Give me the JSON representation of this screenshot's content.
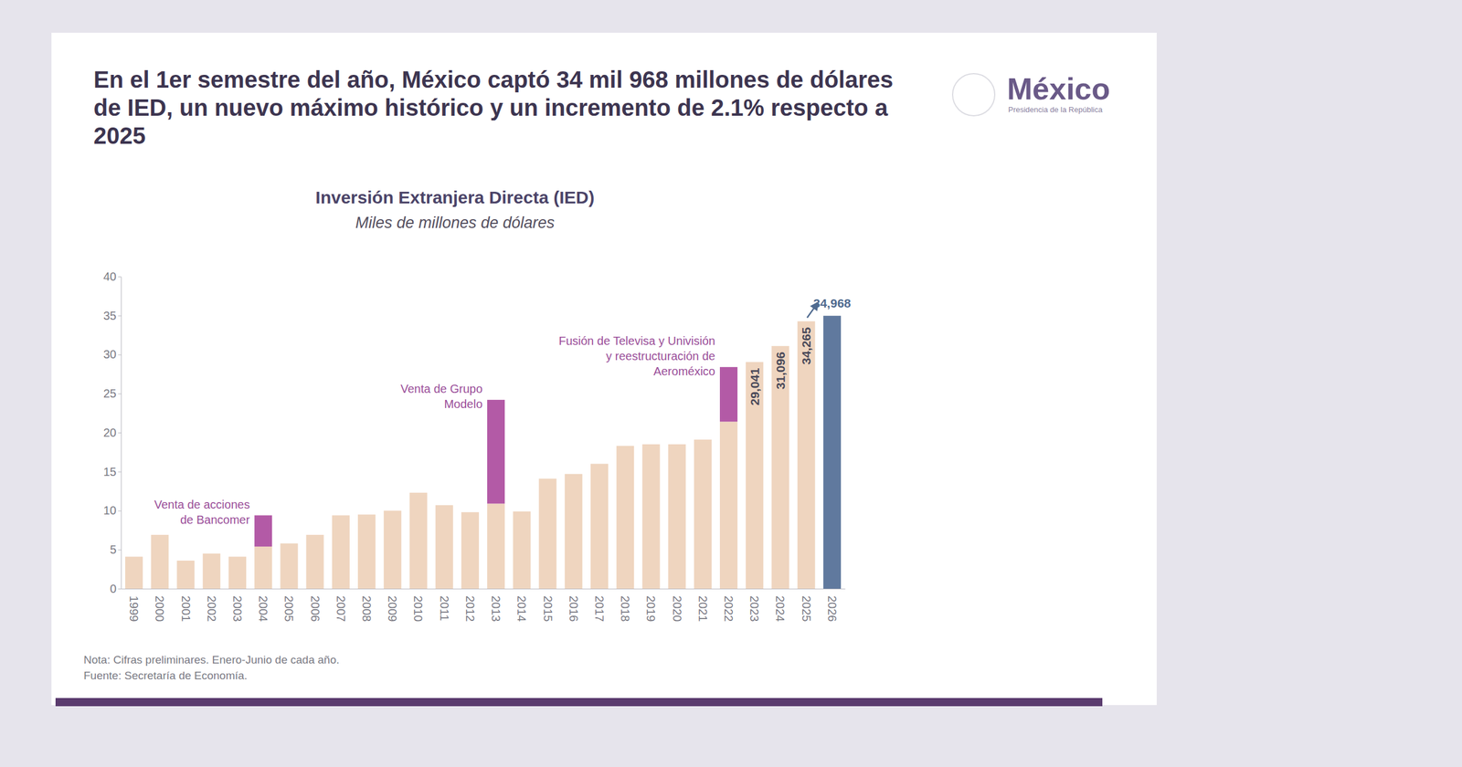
{
  "chart_data": {
    "type": "bar",
    "headline": "En el 1er semestre del año, México captó 34 mil 968 millones de dólares de IED, un nuevo máximo histórico y un incremento de 2.1% respecto a 2025",
    "title": "Inversión Extranjera Directa (IED)",
    "subtitle": "Miles de millones de dólares",
    "logo": {
      "text": "México",
      "subtext": "Presidencia de la República"
    },
    "categories": [
      "1999",
      "2000",
      "2001",
      "2002",
      "2003",
      "2004",
      "2005",
      "2006",
      "2007",
      "2008",
      "2009",
      "2010",
      "2011",
      "2012",
      "2013",
      "2014",
      "2015",
      "2016",
      "2017",
      "2018",
      "2019",
      "2020",
      "2021",
      "2022",
      "2023",
      "2024",
      "2025",
      "2026"
    ],
    "stacked": true,
    "series": [
      {
        "colors": [
          "#efd5bf",
          "#efd5bf",
          "#efd5bf",
          "#efd5bf",
          "#efd5bf",
          "#efd5bf",
          "#efd5bf",
          "#efd5bf",
          "#efd5bf",
          "#efd5bf",
          "#efd5bf",
          "#efd5bf",
          "#efd5bf",
          "#efd5bf",
          "#efd5bf",
          "#efd5bf",
          "#efd5bf",
          "#efd5bf",
          "#efd5bf",
          "#efd5bf",
          "#efd5bf",
          "#efd5bf",
          "#efd5bf",
          "#efd5bf",
          "#efd5bf",
          "#efd5bf",
          "#efd5bf",
          "#60799e"
        ],
        "values": [
          4.1,
          6.9,
          3.6,
          4.5,
          4.1,
          5.4,
          5.8,
          6.9,
          9.4,
          9.5,
          10.0,
          12.3,
          10.7,
          9.8,
          10.9,
          9.9,
          14.1,
          14.7,
          16.0,
          18.3,
          18.5,
          18.5,
          19.1,
          21.4,
          29.041,
          31.096,
          34.265,
          34.968
        ],
        "data_labels": true,
        "value_labels": [
          null,
          null,
          null,
          null,
          null,
          null,
          null,
          null,
          null,
          null,
          null,
          null,
          null,
          null,
          null,
          null,
          null,
          null,
          null,
          null,
          null,
          null,
          null,
          null,
          "29,041",
          "31,096",
          "34,265",
          "34,968"
        ]
      },
      {
        "color": "#b35aa6",
        "values": [
          null,
          null,
          null,
          null,
          null,
          4.0,
          null,
          null,
          null,
          null,
          null,
          null,
          null,
          null,
          13.3,
          null,
          null,
          null,
          null,
          null,
          null,
          null,
          null,
          7.0,
          null,
          null,
          null,
          null
        ]
      }
    ],
    "ylim": [
      0,
      40
    ],
    "yticks": [
      0,
      5,
      10,
      15,
      20,
      25,
      30,
      35,
      40
    ],
    "grid": false,
    "annotations": [
      {
        "x": "2004",
        "lines": [
          "Venta de acciones",
          "de Bancomer"
        ]
      },
      {
        "x": "2013",
        "lines": [
          "Venta de Grupo",
          "Modelo"
        ]
      },
      {
        "x": "2022",
        "lines": [
          "Fusión de Televisa y Univisión",
          "y reestructuración de",
          "Aeroméxico"
        ]
      }
    ],
    "notes": [
      "Nota: Cifras preliminares. Enero-Junio de cada año.",
      "Fuente: Secretaría de Economía."
    ]
  }
}
